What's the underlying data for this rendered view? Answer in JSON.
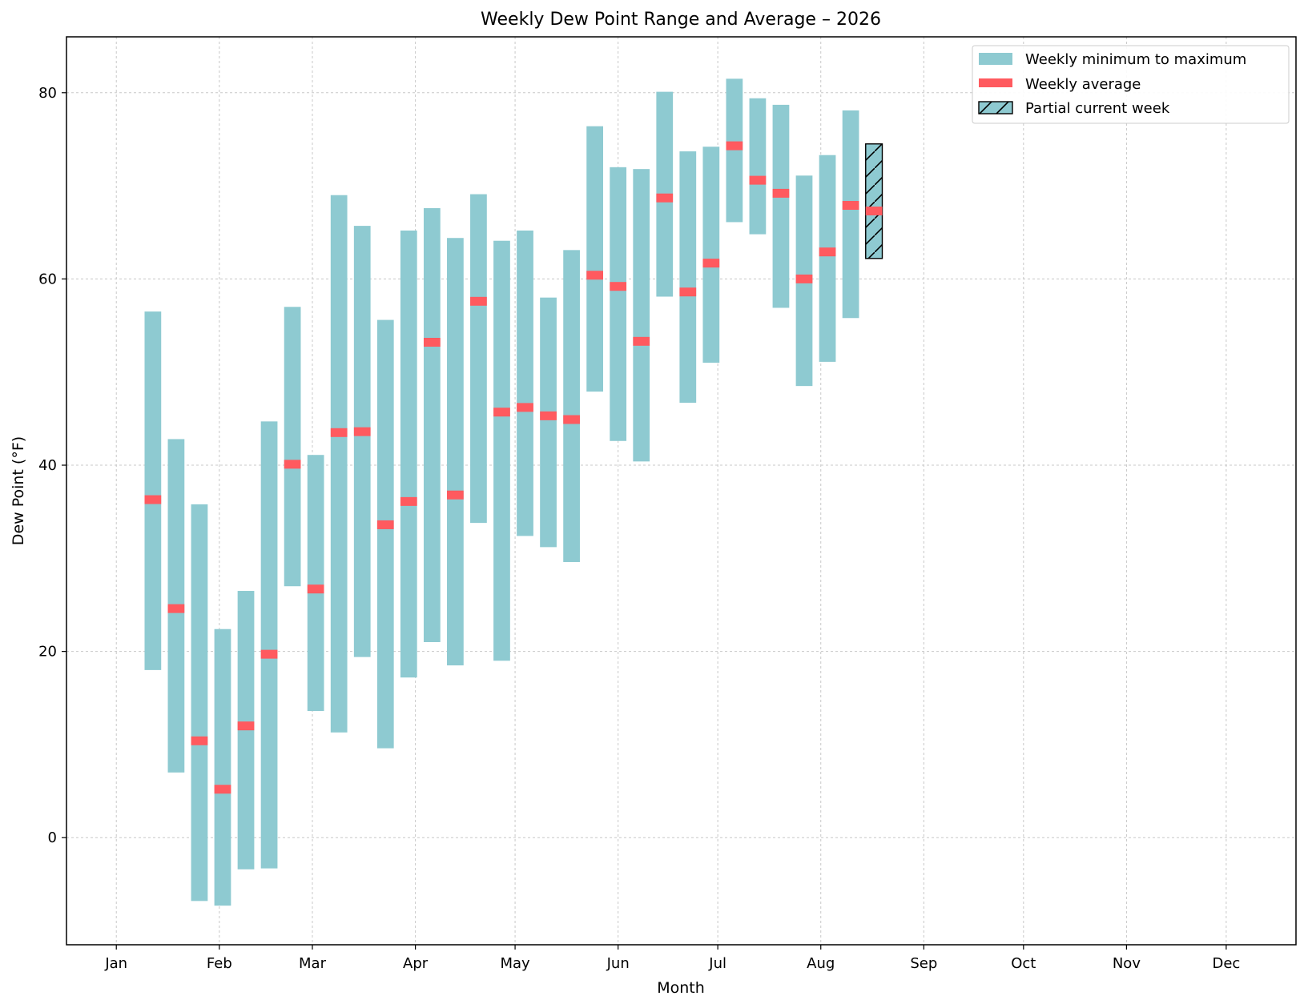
{
  "chart_data": {
    "type": "bar",
    "title": "Weekly Dew Point Range and Average – 2026",
    "xlabel": "Month",
    "ylabel": "Dew Point (°F)",
    "x_ticks": [
      "Jan",
      "Feb",
      "Mar",
      "Apr",
      "May",
      "Jun",
      "Jul",
      "Aug",
      "Sep",
      "Oct",
      "Nov",
      "Dec"
    ],
    "y_ticks": [
      0,
      20,
      40,
      60,
      80
    ],
    "xlim": [
      "2025-12-17",
      "2026-12-22"
    ],
    "ylim": [
      -11.5,
      86
    ],
    "grid": true,
    "legend_position": "top-right",
    "legend": [
      "Weekly minimum to maximum",
      "Weekly average",
      "Partial current week"
    ],
    "colors": {
      "range": "#8ecad1",
      "average": "#ff5a5f",
      "grid": "#c8c8c8"
    },
    "weeks": [
      {
        "date": "2026-01-12",
        "min": 18.0,
        "max": 56.5,
        "avg": 36.3
      },
      {
        "date": "2026-01-19",
        "min": 7.0,
        "max": 42.8,
        "avg": 24.6
      },
      {
        "date": "2026-01-26",
        "min": -6.8,
        "max": 35.8,
        "avg": 10.4
      },
      {
        "date": "2026-02-02",
        "min": -7.3,
        "max": 22.4,
        "avg": 5.2
      },
      {
        "date": "2026-02-09",
        "min": -3.4,
        "max": 26.5,
        "avg": 12.0
      },
      {
        "date": "2026-02-16",
        "min": -3.3,
        "max": 44.7,
        "avg": 19.7
      },
      {
        "date": "2026-02-23",
        "min": 27.0,
        "max": 57.0,
        "avg": 40.1
      },
      {
        "date": "2026-03-02",
        "min": 13.6,
        "max": 41.1,
        "avg": 26.7
      },
      {
        "date": "2026-03-09",
        "min": 11.3,
        "max": 69.0,
        "avg": 43.5
      },
      {
        "date": "2026-03-16",
        "min": 19.4,
        "max": 65.7,
        "avg": 43.6
      },
      {
        "date": "2026-03-23",
        "min": 9.6,
        "max": 55.6,
        "avg": 33.6
      },
      {
        "date": "2026-03-30",
        "min": 17.2,
        "max": 65.2,
        "avg": 36.1
      },
      {
        "date": "2026-04-06",
        "min": 21.0,
        "max": 67.6,
        "avg": 53.2
      },
      {
        "date": "2026-04-13",
        "min": 18.5,
        "max": 64.4,
        "avg": 36.8
      },
      {
        "date": "2026-04-20",
        "min": 33.8,
        "max": 69.1,
        "avg": 57.6
      },
      {
        "date": "2026-04-27",
        "min": 19.0,
        "max": 64.1,
        "avg": 45.7
      },
      {
        "date": "2026-05-04",
        "min": 32.4,
        "max": 65.2,
        "avg": 46.2
      },
      {
        "date": "2026-05-11",
        "min": 31.2,
        "max": 58.0,
        "avg": 45.3
      },
      {
        "date": "2026-05-18",
        "min": 29.6,
        "max": 63.1,
        "avg": 44.9
      },
      {
        "date": "2026-05-25",
        "min": 47.9,
        "max": 76.4,
        "avg": 60.4
      },
      {
        "date": "2026-06-01",
        "min": 42.6,
        "max": 72.0,
        "avg": 59.2
      },
      {
        "date": "2026-06-08",
        "min": 40.4,
        "max": 71.8,
        "avg": 53.3
      },
      {
        "date": "2026-06-15",
        "min": 58.1,
        "max": 80.1,
        "avg": 68.7
      },
      {
        "date": "2026-06-22",
        "min": 46.7,
        "max": 73.7,
        "avg": 58.6
      },
      {
        "date": "2026-06-29",
        "min": 51.0,
        "max": 74.2,
        "avg": 61.7
      },
      {
        "date": "2026-07-06",
        "min": 66.1,
        "max": 81.5,
        "avg": 74.3
      },
      {
        "date": "2026-07-13",
        "min": 64.8,
        "max": 79.4,
        "avg": 70.6
      },
      {
        "date": "2026-07-20",
        "min": 56.9,
        "max": 78.7,
        "avg": 69.2
      },
      {
        "date": "2026-07-27",
        "min": 48.5,
        "max": 71.1,
        "avg": 60.0
      },
      {
        "date": "2026-08-03",
        "min": 51.1,
        "max": 73.3,
        "avg": 62.9
      },
      {
        "date": "2026-08-10",
        "min": 55.8,
        "max": 78.1,
        "avg": 67.9
      },
      {
        "date": "2026-08-17",
        "min": 62.2,
        "max": 74.5,
        "avg": 67.3,
        "partial": true
      }
    ]
  }
}
